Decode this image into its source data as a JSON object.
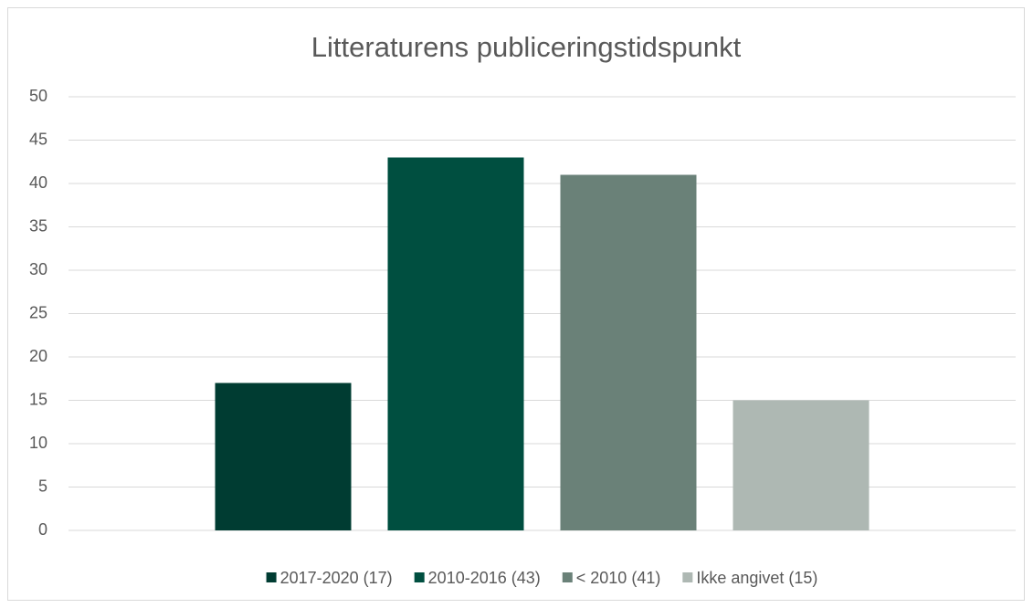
{
  "chart_data": {
    "type": "bar",
    "title": "Litteraturens publiceringstidspunkt",
    "categories": [
      null
    ],
    "series": [
      {
        "name": "2017-2020 (17)",
        "color": "#003c32",
        "values": [
          17
        ]
      },
      {
        "name": "2010-2016 (43)",
        "color": "#004f40",
        "values": [
          43
        ]
      },
      {
        "name": "< 2010 (41)",
        "color": "#6a8178",
        "values": [
          41
        ]
      },
      {
        "name": "Ikke angivet (15)",
        "color": "#aeb8b3",
        "values": [
          15
        ]
      }
    ],
    "ylim": [
      0,
      50
    ],
    "yticks": [
      0,
      5,
      10,
      15,
      20,
      25,
      30,
      35,
      40,
      45,
      50
    ],
    "grid": true,
    "legend": "bottom"
  }
}
